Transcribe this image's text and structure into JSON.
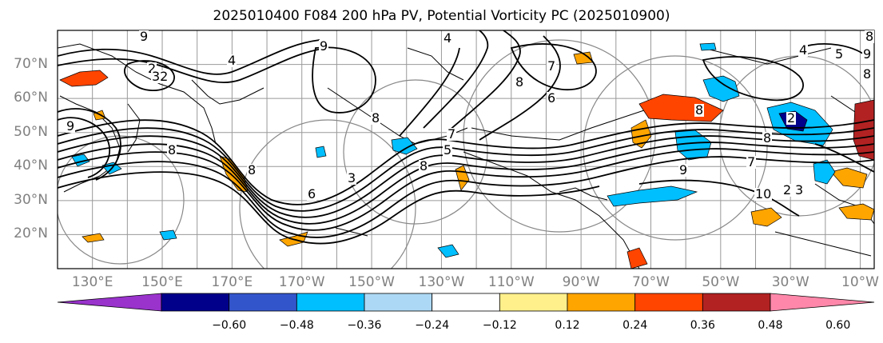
{
  "title": "2025010400 F084 200 hPa PV, Potential Vorticity PC (2025010900)",
  "map": {
    "projection": "plate-carree",
    "lon_range": [
      120,
      354
    ],
    "lat_range": [
      10,
      80
    ],
    "grid": true,
    "lat_labels": [
      "70°N",
      "60°N",
      "50°N",
      "40°N",
      "30°N",
      "20°N"
    ],
    "lon_labels": [
      "130°E",
      "150°E",
      "170°E",
      "170°W",
      "150°W",
      "130°W",
      "110°W",
      "90°W",
      "70°W",
      "50°W",
      "30°W",
      "10°W"
    ],
    "contour_labels": [
      "9",
      "2",
      "32",
      "4",
      "9",
      "8",
      "6",
      "8",
      "9",
      "8",
      "3",
      "5",
      "7",
      "8",
      "4",
      "6",
      "7",
      "8",
      "8",
      "7",
      "8",
      "3",
      "4",
      "5",
      "8",
      "2",
      "10",
      "9",
      "8",
      "9",
      "2"
    ]
  },
  "colorbar": {
    "colors": [
      "#9933cc",
      "#00008b",
      "#3355cc",
      "#00bfff",
      "#add8f5",
      "#ffffff",
      "#fff08c",
      "#ffa500",
      "#ff4500",
      "#b22222",
      "#ff88aa"
    ],
    "tick_labels": [
      "−0.60",
      "−0.48",
      "−0.36",
      "−0.24",
      "−0.12",
      "0.12",
      "0.24",
      "0.36",
      "0.48",
      "0.60"
    ],
    "extend": "both"
  }
}
